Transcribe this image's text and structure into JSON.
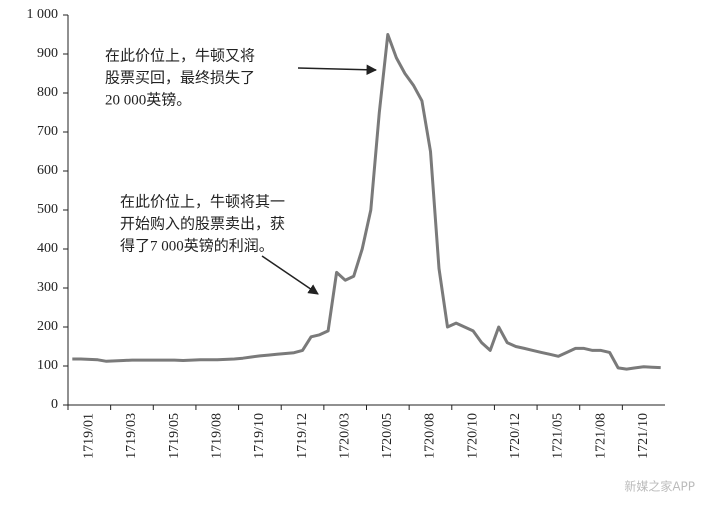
{
  "chart_data": {
    "type": "line",
    "categories": [
      null,
      null,
      "1719/01",
      null,
      null,
      null,
      null,
      "1719/03",
      null,
      null,
      null,
      null,
      "1719/05",
      null,
      null,
      null,
      null,
      "1719/08",
      null,
      null,
      null,
      null,
      "1719/10",
      null,
      null,
      null,
      null,
      "1719/12",
      null,
      null,
      null,
      null,
      "1720/03",
      null,
      null,
      null,
      null,
      "1720/05",
      null,
      null,
      null,
      null,
      "1720/08",
      null,
      null,
      null,
      null,
      "1720/10",
      null,
      null,
      null,
      null,
      "1720/12",
      null,
      null,
      null,
      null,
      "1721/05",
      null,
      null,
      null,
      null,
      "1721/08",
      null,
      null,
      null,
      null,
      "1721/10",
      null,
      null
    ],
    "series": [
      {
        "color": "#7a7a7a",
        "values": [
          118,
          118,
          117,
          116,
          112,
          113,
          114,
          115,
          115,
          115,
          115,
          115,
          115,
          114,
          115,
          116,
          116,
          116,
          117,
          118,
          120,
          123,
          126,
          128,
          130,
          132,
          134,
          140,
          175,
          180,
          190,
          340,
          320,
          330,
          400,
          500,
          750,
          950,
          890,
          850,
          820,
          780,
          650,
          350,
          200,
          210,
          200,
          190,
          160,
          140,
          200,
          160,
          150,
          145,
          140,
          135,
          130,
          125,
          135,
          145,
          145,
          140,
          140,
          135,
          95,
          92,
          95,
          98,
          97,
          96
        ]
      }
    ],
    "ylim": [
      0,
      1000
    ],
    "yticks": [
      0,
      100,
      200,
      300,
      400,
      500,
      600,
      700,
      800,
      900,
      {
        "value": 1000,
        "label": "1 000"
      }
    ],
    "annotations": [
      {
        "lines": [
          "在此价位上，牛顿又将",
          "股票买回，最终损失了",
          "20 000英镑。"
        ]
      },
      {
        "lines": [
          "在此价位上，牛顿将其一",
          "开始购入的股票卖出，获",
          "得了7 000英镑的利润。"
        ]
      }
    ],
    "watermark": "新媒之家APP"
  }
}
